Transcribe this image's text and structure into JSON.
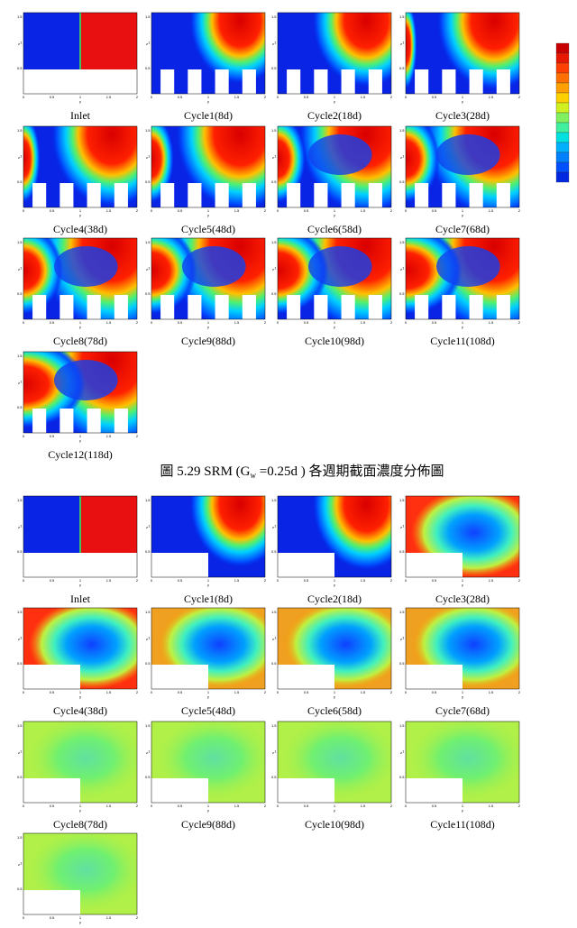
{
  "axes": {
    "xticks": [
      0,
      0.5,
      1,
      1.5,
      2
    ],
    "yticks": [
      0.5,
      1,
      1.5
    ],
    "xlabel": "y",
    "ylabel": "z"
  },
  "figures": [
    {
      "panels": [
        "Inlet",
        "Cycle1(8d)",
        "Cycle2(18d)",
        "Cycle3(28d)",
        "Cycle4(38d)",
        "Cycle5(48d)",
        "Cycle6(58d)",
        "Cycle7(68d)",
        "Cycle8(78d)",
        "Cycle9(88d)",
        "Cycle10(98d)",
        "Cycle11(108d)",
        "Cycle12(118d)"
      ],
      "caption": {
        "prefix": "圖 5.29 SRM (G",
        "subscript": "w",
        "suffix": " =0.25d ) 各週期截面濃度分佈圖"
      }
    },
    {
      "panels": [
        "Inlet",
        "Cycle1(8d)",
        "Cycle2(18d)",
        "Cycle3(28d)",
        "Cycle4(38d)",
        "Cycle5(48d)",
        "Cycle6(58d)",
        "Cycle7(68d)",
        "Cycle8(78d)",
        "Cycle9(88d)",
        "Cycle10(98d)",
        "Cycle11(108d)",
        null
      ]
    }
  ]
}
